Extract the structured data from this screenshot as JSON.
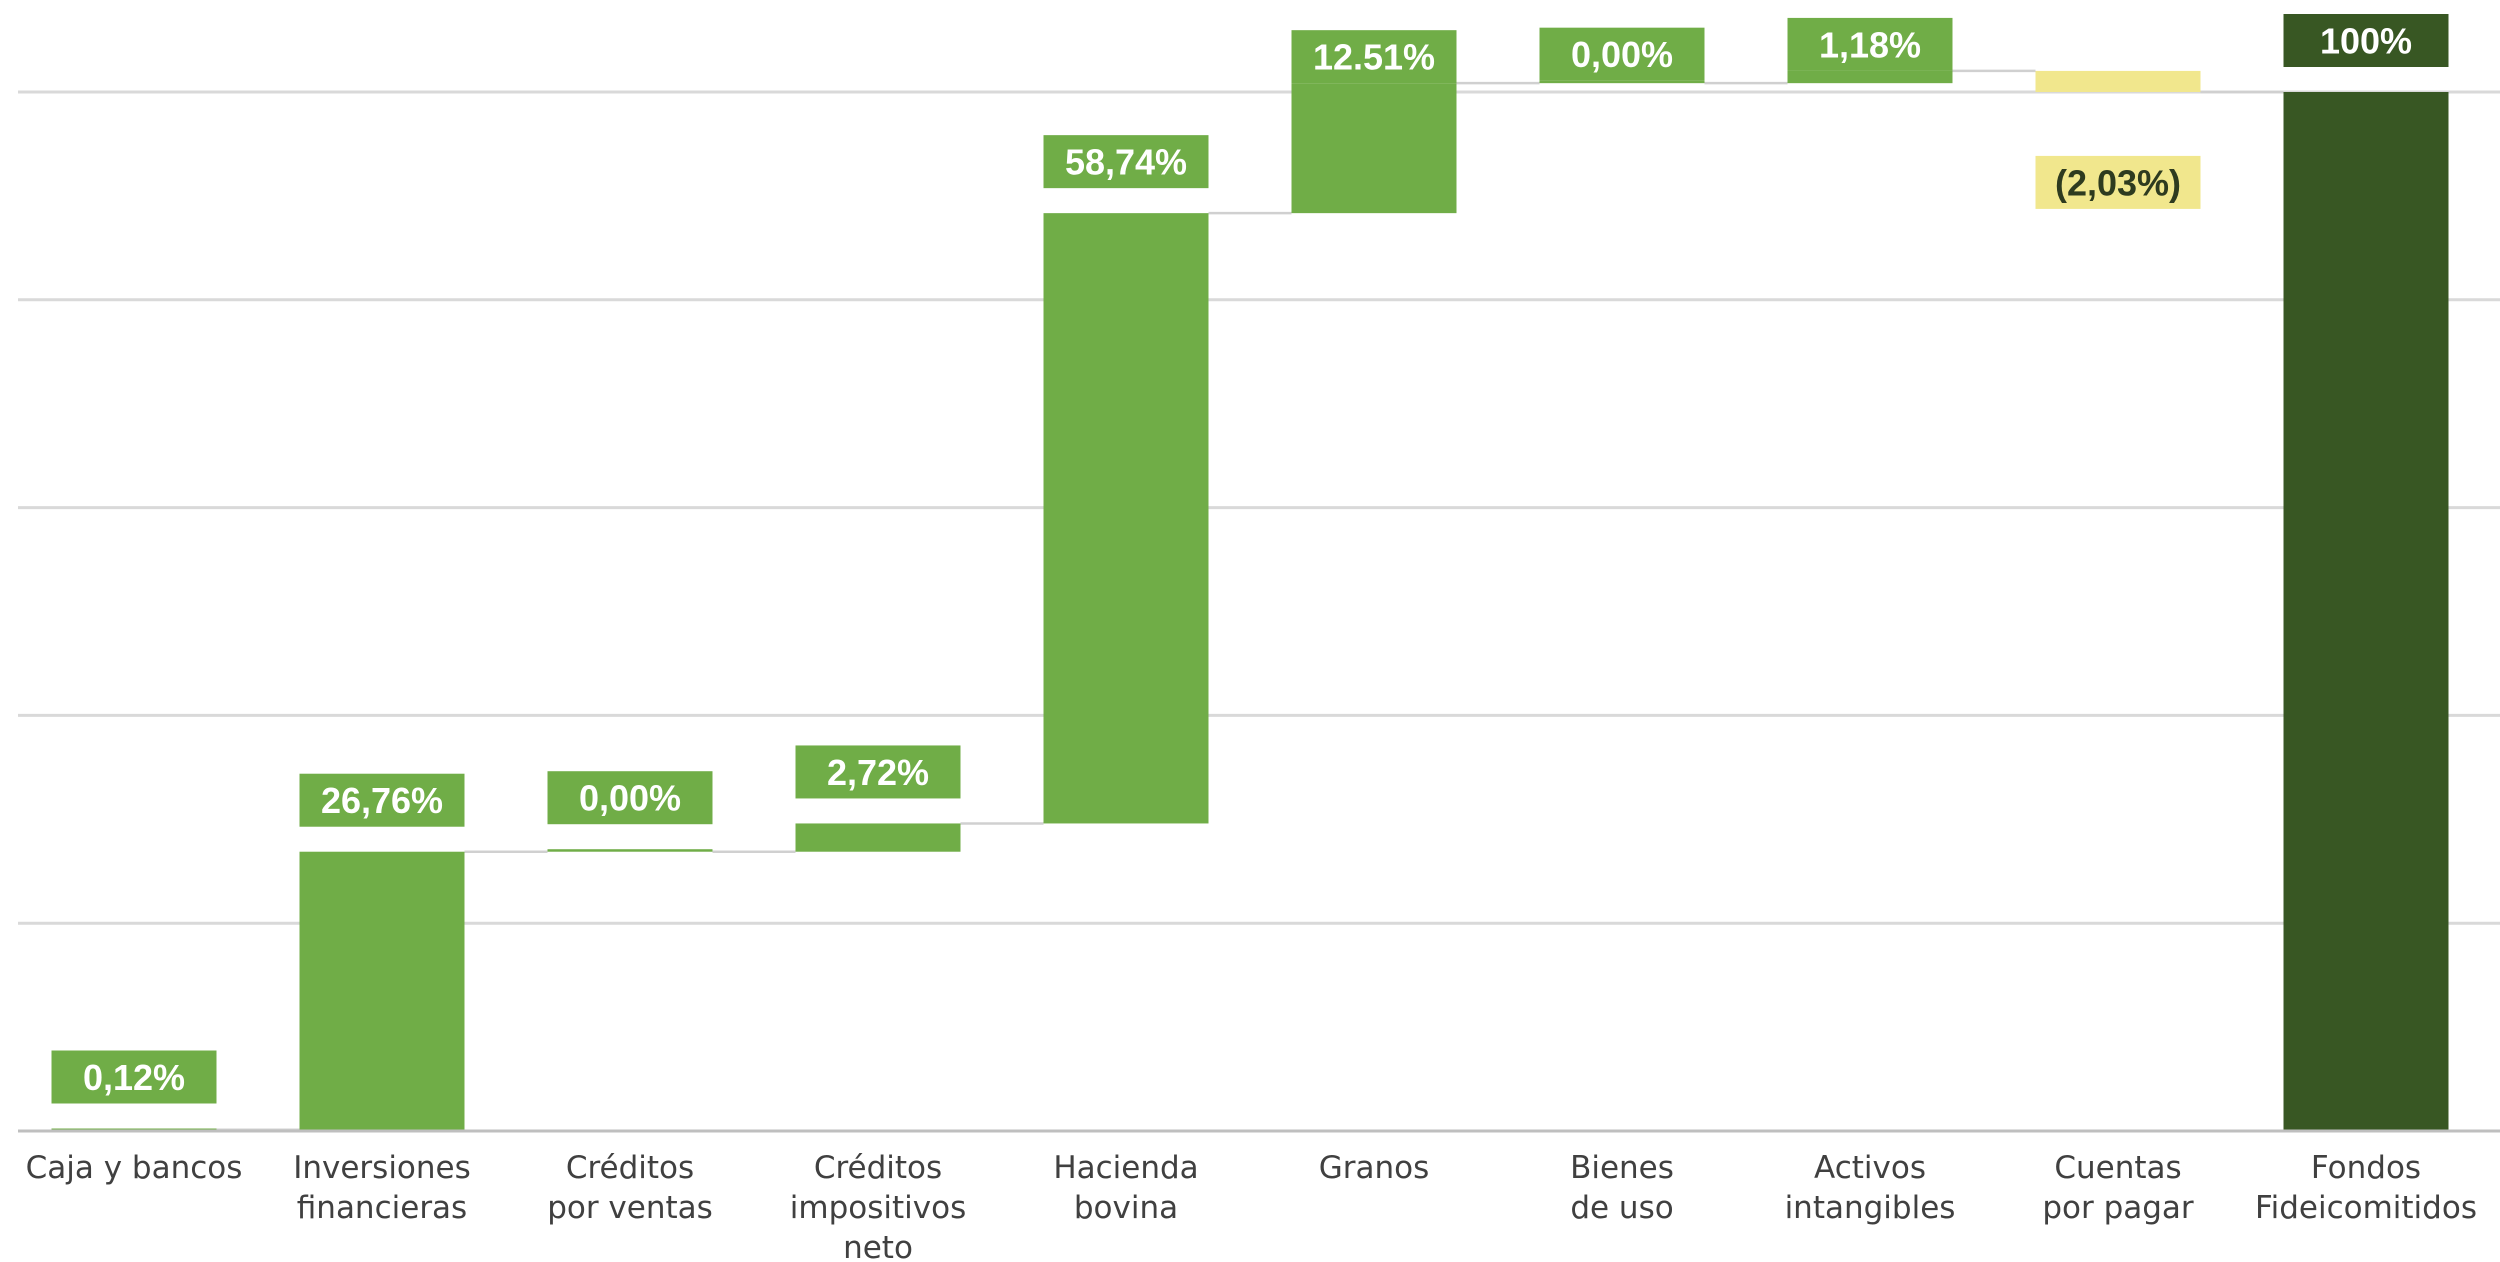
{
  "chart_data": {
    "type": "bar",
    "subtype": "waterfall",
    "title": "",
    "xlabel": "",
    "ylabel": "",
    "ylim": [
      0,
      100
    ],
    "grid": true,
    "legend": "none",
    "categories": [
      "Caja y bancos",
      "Inversiones financieras",
      "Créditos por ventas",
      "Créditos impositivos neto",
      "Hacienda bovina",
      "Granos",
      "Bienes de uso",
      "Activos intangibles",
      "Cuentas por pagar",
      "Fondos Fideicomitidos"
    ],
    "category_lines": [
      [
        "Caja y bancos"
      ],
      [
        "Inversiones",
        "financieras"
      ],
      [
        "Créditos",
        "por ventas"
      ],
      [
        "Créditos",
        "impositivos",
        "neto"
      ],
      [
        "Hacienda",
        "bovina"
      ],
      [
        "Granos"
      ],
      [
        "Bienes",
        "de uso"
      ],
      [
        "Activos",
        "intangibles"
      ],
      [
        "Cuentas",
        "por pagar"
      ],
      [
        "Fondos",
        "Fideicomitidos"
      ]
    ],
    "values": [
      0.12,
      26.76,
      0.0,
      2.72,
      58.74,
      12.51,
      0.0,
      1.18,
      -2.03,
      100
    ],
    "kinds": [
      "increase",
      "increase",
      "increase",
      "increase",
      "increase",
      "increase",
      "increase",
      "increase",
      "decrease",
      "total"
    ],
    "data_labels": [
      "0,12%",
      "26,76%",
      "0,00%",
      "2,72%",
      "58,74%",
      "12.51%",
      "0,00%",
      "1,18%",
      "(2,03%)",
      "100%"
    ],
    "colors": {
      "increase": "#70ad47",
      "decrease": "#f1e78d",
      "total": "#385723",
      "label_text_light": "#ffffff",
      "label_text_dark": "#2e3b1f"
    }
  }
}
